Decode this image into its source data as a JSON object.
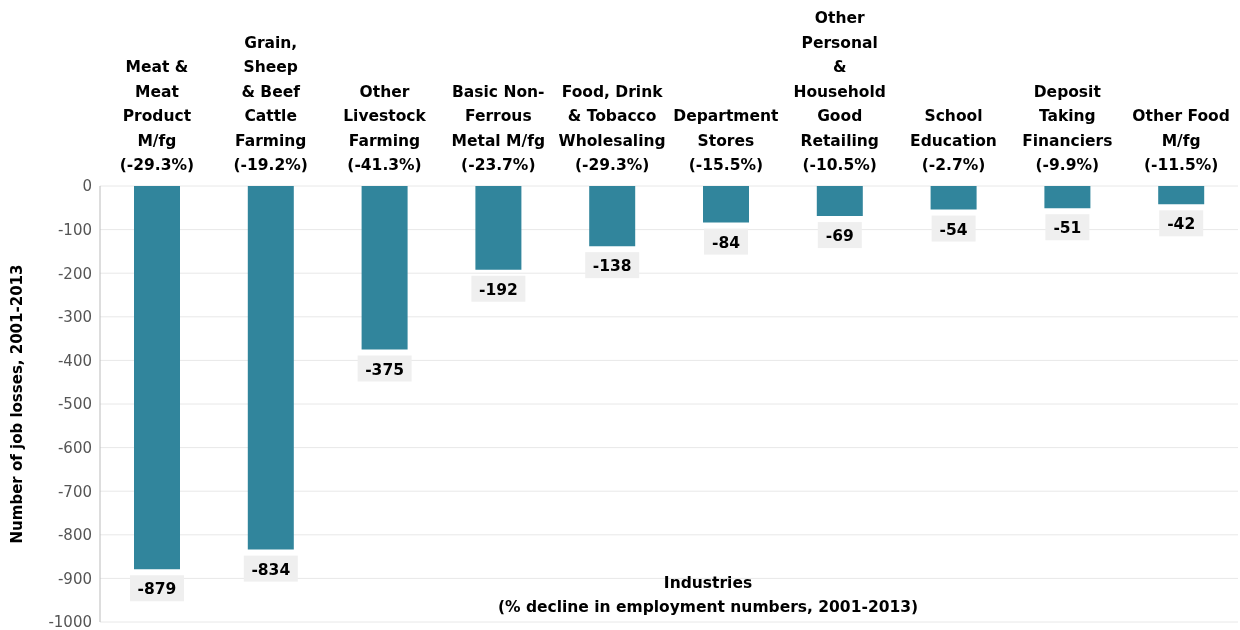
{
  "chart_data": {
    "type": "bar",
    "categories": [
      "Meat &\nMeat\nProduct\nM/fg\n(-29.3%)",
      "Grain,\nSheep\n& Beef\nCattle\nFarming\n(-19.2%)",
      "Other\nLivestock\nFarming\n(-41.3%)",
      "Basic Non-\nFerrous\nMetal M/fg\n(-23.7%)",
      "Food, Drink\n& Tobacco\nWholesaling\n(-29.3%)",
      "Department\nStores\n(-15.5%)",
      "Other\nPersonal\n&\nHousehold\nGood\nRetailing\n(-10.5%)",
      "School\nEducation\n(-2.7%)",
      "Deposit\nTaking\nFinanciers\n(-9.9%)",
      "Other Food\nM/fg\n(-11.5%)"
    ],
    "values": [
      -879,
      -834,
      -375,
      -192,
      -138,
      -84,
      -69,
      -54,
      -51,
      -42
    ],
    "color": "#31859c",
    "xlabel": "Industries\n(% decline in employment numbers, 2001-2013)",
    "ylabel": "Number of job losses, 2001-2013",
    "ylim": [
      -1000,
      0
    ],
    "yticks": [
      0,
      -100,
      -200,
      -300,
      -400,
      -500,
      -600,
      -700,
      -800,
      -900,
      -1000
    ],
    "grid": "y",
    "data_labels": true
  }
}
